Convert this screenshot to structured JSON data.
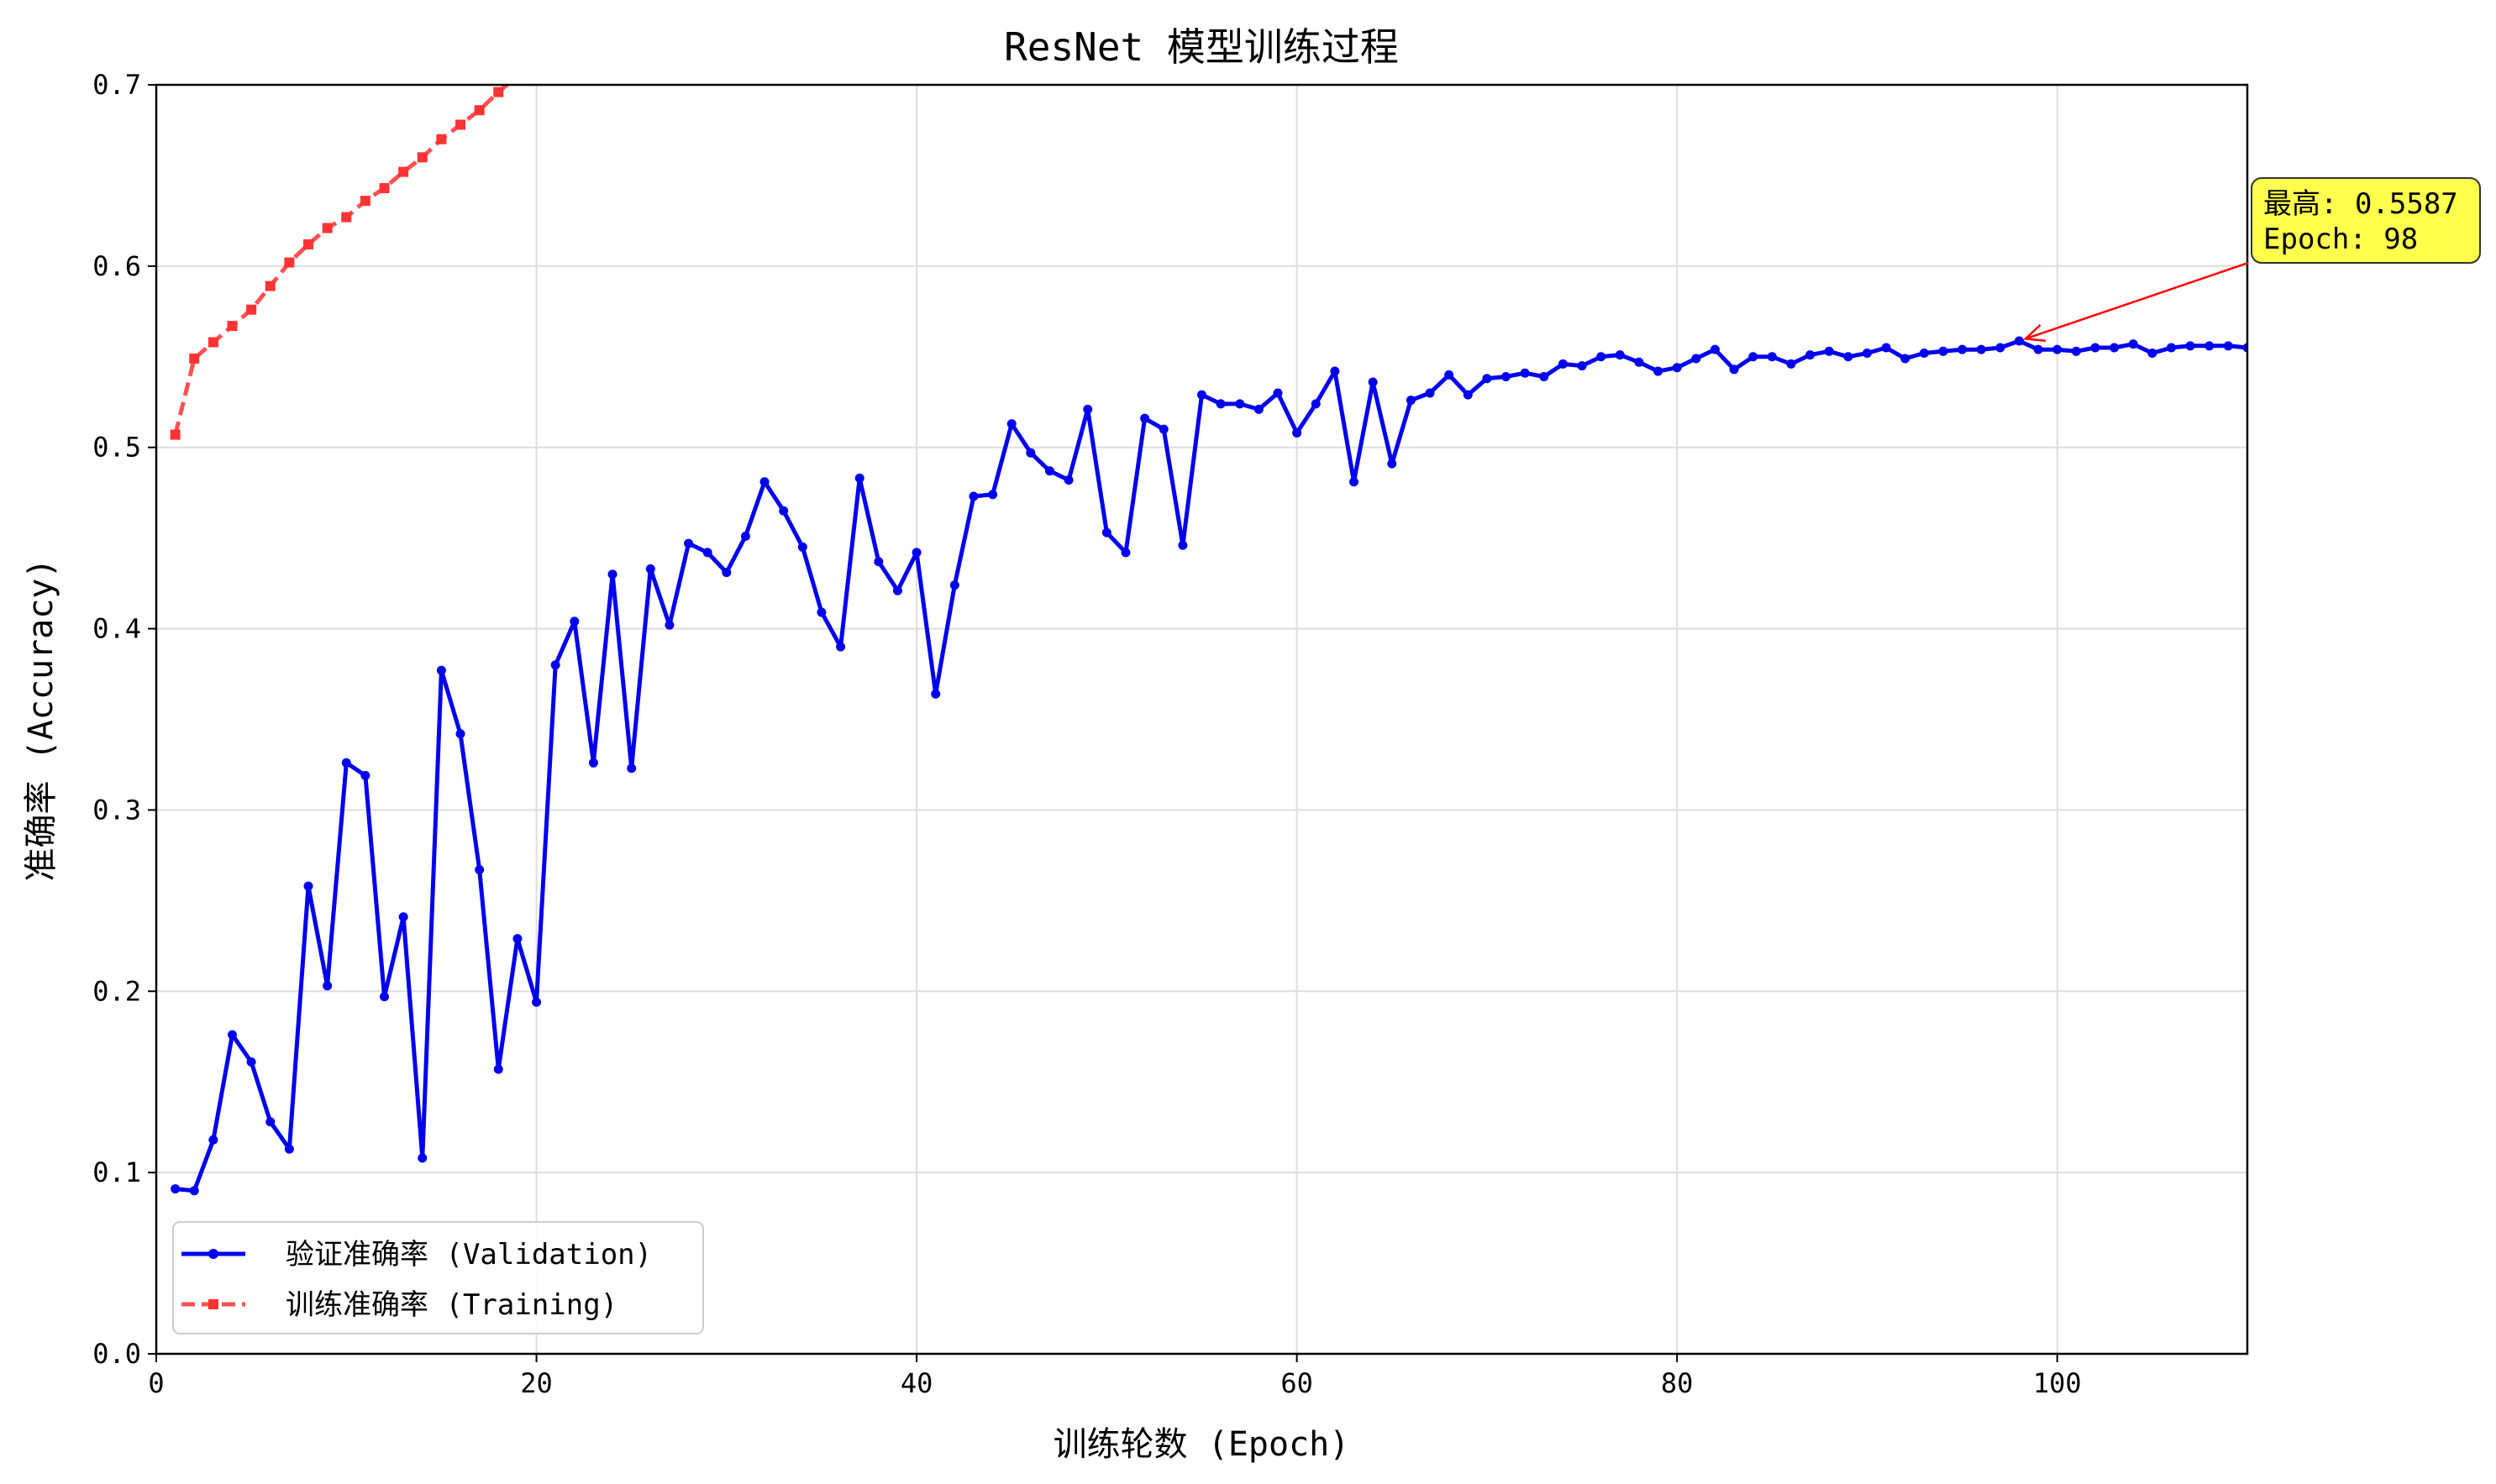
{
  "chart_data": {
    "type": "line",
    "title": "ResNet 模型训练过程",
    "xlabel": "训练轮数 (Epoch)",
    "ylabel": "准确率 (Accuracy)",
    "xlim": [
      0,
      110
    ],
    "ylim": [
      0.0,
      0.7
    ],
    "xticks": [
      0,
      20,
      40,
      60,
      80,
      100
    ],
    "yticks": [
      0.0,
      0.1,
      0.2,
      0.3,
      0.4,
      0.5,
      0.6,
      0.7
    ],
    "grid": true,
    "legend_position": "bottom-left",
    "series": [
      {
        "name": "验证准确率 (Validation)",
        "color": "#0000ee",
        "style": "solid",
        "marker": "circle",
        "x": [
          1,
          2,
          3,
          4,
          5,
          6,
          7,
          8,
          9,
          10,
          11,
          12,
          13,
          14,
          15,
          16,
          17,
          18,
          19,
          20,
          21,
          22,
          23,
          24,
          25,
          26,
          27,
          28,
          29,
          30,
          31,
          32,
          33,
          34,
          35,
          36,
          37,
          38,
          39,
          40,
          41,
          42,
          43,
          44,
          45,
          46,
          47,
          48,
          49,
          50,
          51,
          52,
          53,
          54,
          55,
          56,
          57,
          58,
          59,
          60,
          61,
          62,
          63,
          64,
          65,
          66,
          67,
          68,
          69,
          70,
          71,
          72,
          73,
          74,
          75,
          76,
          77,
          78,
          79,
          80,
          81,
          82,
          83,
          84,
          85,
          86,
          87,
          88,
          89,
          90,
          91,
          92,
          93,
          94,
          95,
          96,
          97,
          98,
          99,
          100,
          101,
          102,
          103,
          104,
          105,
          106,
          107,
          108,
          109,
          110
        ],
        "values": [
          0.091,
          0.09,
          0.118,
          0.176,
          0.161,
          0.128,
          0.113,
          0.258,
          0.203,
          0.326,
          0.319,
          0.197,
          0.241,
          0.108,
          0.377,
          0.342,
          0.267,
          0.157,
          0.229,
          0.194,
          0.38,
          0.404,
          0.326,
          0.43,
          0.323,
          0.433,
          0.402,
          0.447,
          0.442,
          0.431,
          0.451,
          0.481,
          0.465,
          0.445,
          0.409,
          0.39,
          0.483,
          0.437,
          0.421,
          0.442,
          0.364,
          0.424,
          0.473,
          0.474,
          0.513,
          0.497,
          0.487,
          0.482,
          0.521,
          0.453,
          0.442,
          0.516,
          0.51,
          0.446,
          0.529,
          0.524,
          0.524,
          0.521,
          0.53,
          0.508,
          0.524,
          0.542,
          0.481,
          0.536,
          0.491,
          0.526,
          0.53,
          0.54,
          0.529,
          0.538,
          0.539,
          0.541,
          0.539,
          0.546,
          0.545,
          0.55,
          0.551,
          0.547,
          0.542,
          0.544,
          0.549,
          0.554,
          0.543,
          0.55,
          0.55,
          0.546,
          0.551,
          0.553,
          0.55,
          0.552,
          0.555,
          0.549,
          0.552,
          0.553,
          0.554,
          0.554,
          0.555,
          0.5587,
          0.554,
          0.554,
          0.553,
          0.555,
          0.555,
          0.557,
          0.552,
          0.555,
          0.556,
          0.556,
          0.556,
          0.555
        ]
      },
      {
        "name": "训练准确率 (Training)",
        "color": "#ff3333",
        "style": "dashed",
        "marker": "square",
        "x": [
          1,
          2,
          3,
          4,
          5,
          6,
          7,
          8,
          9,
          10,
          11,
          12,
          13,
          14,
          15,
          16,
          17,
          18,
          19
        ],
        "values": [
          0.507,
          0.549,
          0.558,
          0.567,
          0.576,
          0.589,
          0.602,
          0.612,
          0.621,
          0.627,
          0.636,
          0.643,
          0.652,
          0.66,
          0.67,
          0.678,
          0.686,
          0.696,
          0.705
        ]
      }
    ],
    "annotation": {
      "line1": "最高: 0.5587",
      "line2": "Epoch: 98",
      "point_x": 98,
      "point_y": 0.5587,
      "box_color": "#ffff4d",
      "arrow_color": "#ff0000"
    }
  }
}
